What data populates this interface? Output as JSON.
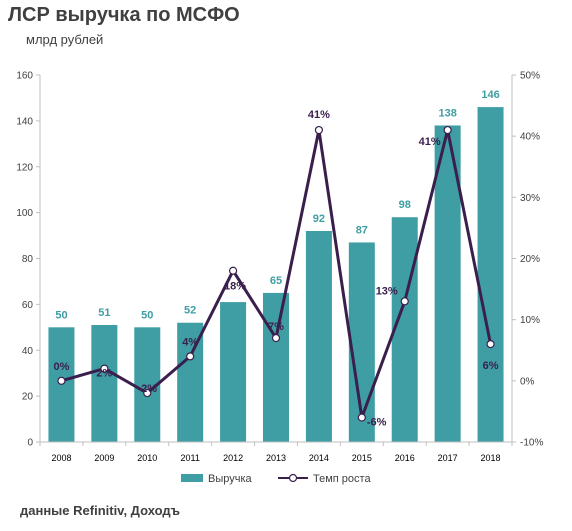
{
  "title": "ЛСР выручка по МСФО",
  "subtitle": "млрд рублей",
  "source": "данные Refinitiv, Доходъ",
  "colors": {
    "bar": "#3e9ea3",
    "line": "#3a1f4d",
    "bar_label": "#3e9ea3",
    "line_label": "#3a1f4d"
  },
  "chart_data": {
    "type": "bar",
    "categories": [
      "2008",
      "2009",
      "2010",
      "2011",
      "2012",
      "2013",
      "2014",
      "2015",
      "2016",
      "2017",
      "2018"
    ],
    "series": [
      {
        "name": "Выручка",
        "type": "bar",
        "axis": "left",
        "values": [
          50,
          51,
          50,
          52,
          61,
          65,
          92,
          87,
          98,
          138,
          146
        ],
        "labels": [
          "50",
          "51",
          "50",
          "52",
          "",
          "65",
          "92",
          "87",
          "98",
          "138",
          "146"
        ]
      },
      {
        "name": "Темп роста",
        "type": "line",
        "axis": "right",
        "values": [
          0,
          2,
          -2,
          4,
          18,
          7,
          41,
          -6,
          13,
          41,
          6
        ],
        "labels": [
          "0%",
          "2%",
          "-2%",
          "4%",
          "18%",
          "7%",
          "41%",
          "-6%",
          "13%",
          "41%",
          "6%"
        ]
      }
    ],
    "ylim_left": [
      0,
      160
    ],
    "yticks_left": [
      "0",
      "20",
      "40",
      "60",
      "80",
      "100",
      "120",
      "140",
      "160"
    ],
    "ylim_right": [
      -10,
      50
    ],
    "yticks_right": [
      "-10%",
      "0%",
      "10%",
      "20%",
      "30%",
      "40%",
      "50%"
    ],
    "legend_position": "bottom",
    "grid": false
  }
}
